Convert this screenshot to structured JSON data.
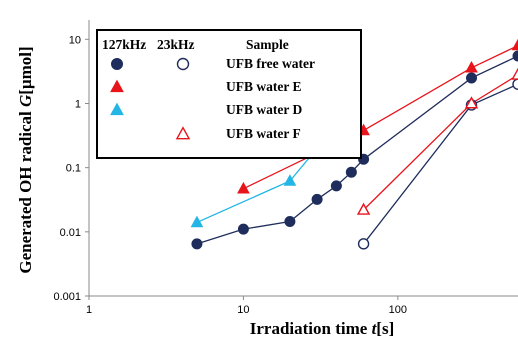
{
  "chart_data": {
    "type": "scatter",
    "title": "",
    "xlabel_main": "Irradiation time ",
    "xlabel_var": "t",
    "xlabel_unit": "[s]",
    "ylabel_main": "Generated OH radical ",
    "ylabel_var": "G",
    "ylabel_unit": "[μmol]",
    "x_scale": "log",
    "y_scale": "log",
    "xlim": [
      1,
      600
    ],
    "ylim": [
      0.001,
      20
    ],
    "x_ticks": [
      {
        "value": 1,
        "label": "1"
      },
      {
        "value": 10,
        "label": "10"
      },
      {
        "value": 100,
        "label": "100"
      }
    ],
    "y_ticks": [
      {
        "value": 0.001,
        "label": "0.001"
      },
      {
        "value": 0.01,
        "label": "0.01"
      },
      {
        "value": 0.1,
        "label": "0.1"
      },
      {
        "value": 1,
        "label": "1"
      },
      {
        "value": 10,
        "label": "10"
      }
    ],
    "grid": false,
    "legend": {
      "placement": "top-left",
      "header_freq1": "127kHz",
      "header_freq2": "23kHz",
      "header_sample": "Sample"
    },
    "series": [
      {
        "name": "UFB free water",
        "frequency": "127kHz",
        "marker": "circle",
        "filled": true,
        "color": "#1f2d5c",
        "x": [
          5,
          10,
          20,
          30,
          40,
          50,
          60,
          300,
          600
        ],
        "y": [
          0.0065,
          0.011,
          0.0145,
          0.032,
          0.052,
          0.085,
          0.135,
          2.5,
          5.5
        ]
      },
      {
        "name": "UFB free water",
        "frequency": "23kHz",
        "marker": "circle",
        "filled": false,
        "color": "#1f2d5c",
        "x": [
          60,
          300,
          600
        ],
        "y": [
          0.0065,
          0.95,
          2.0
        ]
      },
      {
        "name": "UFB water E",
        "frequency": "127kHz",
        "marker": "triangle",
        "filled": true,
        "color": "#e8141b",
        "x": [
          10,
          60,
          300,
          600
        ],
        "y": [
          0.047,
          0.38,
          3.6,
          8.0
        ]
      },
      {
        "name": "UFB water D",
        "frequency": "127kHz",
        "marker": "triangle",
        "filled": true,
        "color": "#22b5e6",
        "x": [
          5,
          20,
          30,
          40,
          50
        ],
        "y": [
          0.014,
          0.062,
          0.2,
          0.22,
          0.29
        ]
      },
      {
        "name": "UFB water F",
        "frequency": "23kHz",
        "marker": "triangle",
        "filled": false,
        "color": "#e8141b",
        "x": [
          60,
          300,
          600
        ],
        "y": [
          0.022,
          1.0,
          2.8
        ]
      }
    ],
    "colors": {
      "navy": "#1f2d5c",
      "red": "#e8141b",
      "cyan": "#22b5e6",
      "axis": "#8a8a8a"
    }
  }
}
